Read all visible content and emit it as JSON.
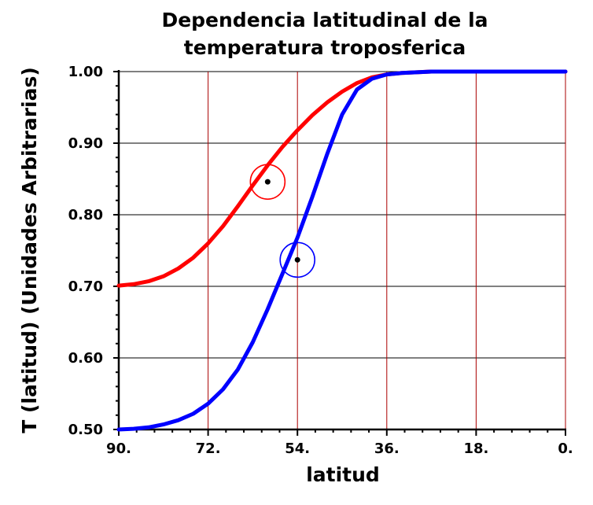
{
  "chart_data": {
    "type": "line",
    "title_lines": [
      "Dependencia latitudinal de la",
      "temperatura troposferica"
    ],
    "xlabel": "latitud",
    "ylabel": "T (latitud) (Unidades Arbitrarias)",
    "xlim": [
      90,
      0
    ],
    "ylim": [
      0.5,
      1.0
    ],
    "x_ticks": [
      90,
      72,
      54,
      36,
      18,
      0
    ],
    "x_tick_labels": [
      "90.",
      "72.",
      "54.",
      "36.",
      "18.",
      "0."
    ],
    "y_ticks": [
      0.5,
      0.6,
      0.7,
      0.8,
      0.9,
      1.0
    ],
    "y_tick_labels": [
      "0.50",
      "0.60",
      "0.70",
      "0.80",
      "0.90",
      "1.00"
    ],
    "grid": {
      "vertical_color": "#aa0000",
      "horizontal_color": "#000000"
    },
    "series": [
      {
        "color": "#ff0000",
        "x": [
          90,
          87,
          84,
          81,
          78,
          75,
          72,
          69,
          66,
          63,
          60,
          57,
          54,
          51,
          48,
          45,
          42,
          39,
          36,
          33,
          30,
          27,
          24,
          21,
          18,
          15,
          12,
          9,
          6,
          3,
          0
        ],
        "y": [
          0.701,
          0.703,
          0.707,
          0.714,
          0.725,
          0.74,
          0.76,
          0.784,
          0.812,
          0.841,
          0.869,
          0.895,
          0.918,
          0.939,
          0.957,
          0.972,
          0.984,
          0.992,
          0.996,
          0.998,
          0.999,
          1.0,
          1.0,
          1.0,
          1.0,
          1.0,
          1.0,
          1.0,
          1.0,
          1.0,
          1.0
        ],
        "marker": {
          "x": 60,
          "y": 0.846
        }
      },
      {
        "color": "#0000ff",
        "x": [
          90,
          87,
          84,
          81,
          78,
          75,
          72,
          69,
          66,
          63,
          60,
          57,
          54,
          51,
          48,
          45,
          42,
          39,
          36,
          33,
          30,
          27,
          24,
          21,
          18,
          15,
          12,
          9,
          6,
          3,
          0
        ],
        "y": [
          0.5,
          0.501,
          0.503,
          0.507,
          0.513,
          0.522,
          0.536,
          0.556,
          0.584,
          0.622,
          0.668,
          0.718,
          0.768,
          0.825,
          0.885,
          0.94,
          0.975,
          0.99,
          0.996,
          0.998,
          0.999,
          1.0,
          1.0,
          1.0,
          1.0,
          1.0,
          1.0,
          1.0,
          1.0,
          1.0,
          1.0
        ],
        "marker": {
          "x": 54,
          "y": 0.737
        }
      }
    ]
  }
}
